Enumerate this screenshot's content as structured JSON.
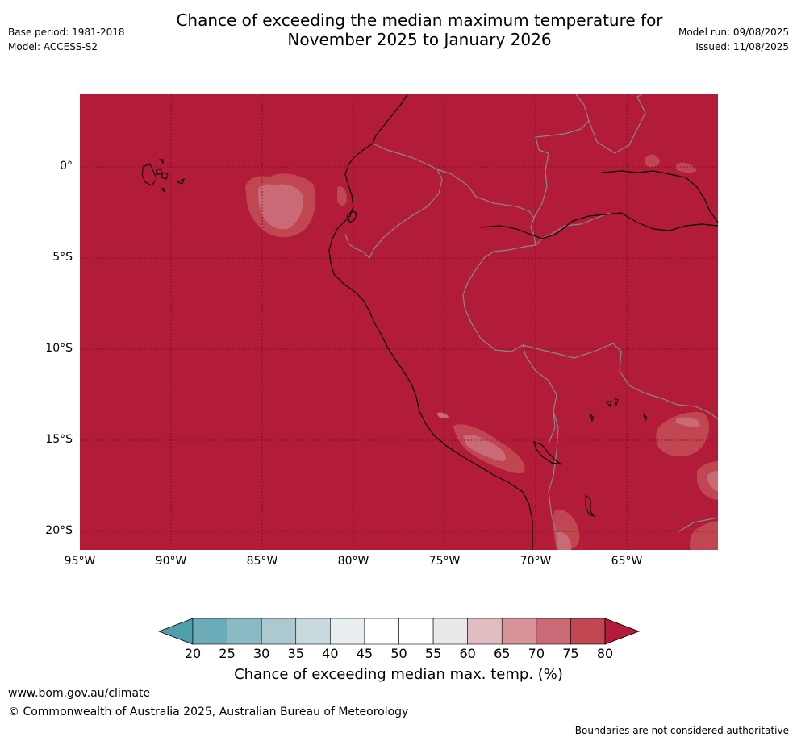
{
  "header": {
    "base_period": "Base period: 1981-2018",
    "model": "Model: ACCESS-S2",
    "title_line1": "Chance of exceeding the median maximum temperature for",
    "title_line2": "November 2025 to January 2026",
    "model_run": "Model run: 09/08/2025",
    "issued": "Issued: 11/08/2025"
  },
  "map": {
    "lat_labels": [
      "0°",
      "5°S",
      "10°S",
      "15°S",
      "20°S"
    ],
    "lon_labels": [
      "95°W",
      "90°W",
      "85°W",
      "80°W",
      "75°W",
      "70°W",
      "65°W"
    ],
    "background_color": "#b21c38",
    "coast_color": "#000000",
    "border_color": "#888888"
  },
  "colorbar": {
    "ticks": [
      "20",
      "25",
      "30",
      "35",
      "40",
      "45",
      "50",
      "55",
      "60",
      "65",
      "70",
      "75",
      "80"
    ],
    "colors": [
      "#4f9eac",
      "#6cacb9",
      "#8cbac4",
      "#abc9cf",
      "#c9d9dd",
      "#e8eef0",
      "#ffffff",
      "#ffffff",
      "#e8e8e8",
      "#e3bcc2",
      "#d8949b",
      "#ca6a76",
      "#c04652",
      "#b21c38"
    ],
    "label": "Chance of exceeding median max. temp. (%)"
  },
  "footer": {
    "url": "www.bom.gov.au/climate",
    "copyright": "© Commonwealth of Australia 2025, Australian Bureau of Meteorology",
    "disclaimer": "Boundaries are not considered authoritative"
  }
}
